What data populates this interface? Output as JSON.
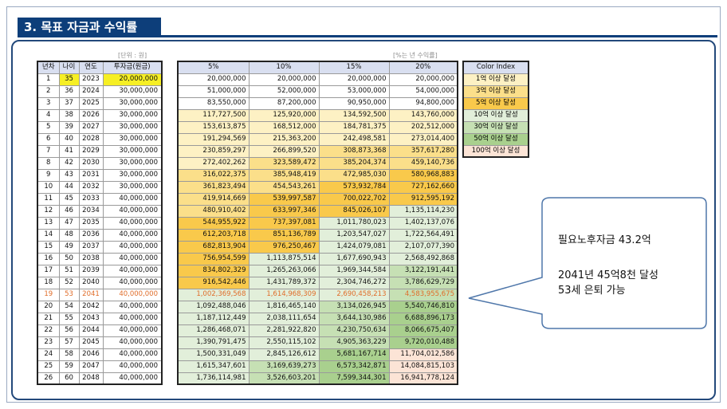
{
  "title": "3. 목표 자금과 수익률",
  "unit_label": "[단위 : 원]",
  "rate_label": "[%는 년 수익률]",
  "left_table": {
    "headers": [
      "년차",
      "나이",
      "연도",
      "투자금(원금)"
    ],
    "rows": [
      [
        "1",
        "35",
        "2023",
        "20,000,000"
      ],
      [
        "2",
        "36",
        "2024",
        "30,000,000"
      ],
      [
        "3",
        "37",
        "2025",
        "30,000,000"
      ],
      [
        "4",
        "38",
        "2026",
        "30,000,000"
      ],
      [
        "5",
        "39",
        "2027",
        "30,000,000"
      ],
      [
        "6",
        "40",
        "2028",
        "30,000,000"
      ],
      [
        "7",
        "41",
        "2029",
        "30,000,000"
      ],
      [
        "8",
        "42",
        "2030",
        "30,000,000"
      ],
      [
        "9",
        "43",
        "2031",
        "30,000,000"
      ],
      [
        "10",
        "44",
        "2032",
        "30,000,000"
      ],
      [
        "11",
        "45",
        "2033",
        "40,000,000"
      ],
      [
        "12",
        "46",
        "2034",
        "40,000,000"
      ],
      [
        "13",
        "47",
        "2035",
        "40,000,000"
      ],
      [
        "14",
        "48",
        "2036",
        "40,000,000"
      ],
      [
        "15",
        "49",
        "2037",
        "40,000,000"
      ],
      [
        "16",
        "50",
        "2038",
        "40,000,000"
      ],
      [
        "17",
        "51",
        "2039",
        "40,000,000"
      ],
      [
        "18",
        "52",
        "2040",
        "40,000,000"
      ],
      [
        "19",
        "53",
        "2041",
        "40,000,000"
      ],
      [
        "20",
        "54",
        "2042",
        "40,000,000"
      ],
      [
        "21",
        "55",
        "2043",
        "40,000,000"
      ],
      [
        "22",
        "56",
        "2044",
        "40,000,000"
      ],
      [
        "23",
        "57",
        "2045",
        "40,000,000"
      ],
      [
        "24",
        "58",
        "2046",
        "40,000,000"
      ],
      [
        "25",
        "59",
        "2047",
        "40,000,000"
      ],
      [
        "26",
        "60",
        "2048",
        "40,000,000"
      ]
    ]
  },
  "right_table": {
    "headers": [
      "5%",
      "10%",
      "15%",
      "20%"
    ],
    "rows": [
      [
        "20,000,000",
        "20,000,000",
        "20,000,000",
        "20,000,000"
      ],
      [
        "51,000,000",
        "52,000,000",
        "53,000,000",
        "54,000,000"
      ],
      [
        "83,550,000",
        "87,200,000",
        "90,950,000",
        "94,800,000"
      ],
      [
        "117,727,500",
        "125,920,000",
        "134,592,500",
        "143,760,000"
      ],
      [
        "153,613,875",
        "168,512,000",
        "184,781,375",
        "202,512,000"
      ],
      [
        "191,294,569",
        "215,363,200",
        "242,498,581",
        "273,014,400"
      ],
      [
        "230,859,297",
        "266,899,520",
        "308,873,368",
        "357,617,280"
      ],
      [
        "272,402,262",
        "323,589,472",
        "385,204,374",
        "459,140,736"
      ],
      [
        "316,022,375",
        "385,948,419",
        "472,985,030",
        "580,968,883"
      ],
      [
        "361,823,494",
        "454,543,261",
        "573,932,784",
        "727,162,660"
      ],
      [
        "419,914,669",
        "539,997,587",
        "700,022,702",
        "912,595,192"
      ],
      [
        "480,910,402",
        "633,997,346",
        "845,026,107",
        "1,135,114,230"
      ],
      [
        "544,955,922",
        "737,397,081",
        "1,011,780,023",
        "1,402,137,076"
      ],
      [
        "612,203,718",
        "851,136,789",
        "1,203,547,027",
        "1,722,564,491"
      ],
      [
        "682,813,904",
        "976,250,467",
        "1,424,079,081",
        "2,107,077,390"
      ],
      [
        "756,954,599",
        "1,113,875,514",
        "1,677,690,943",
        "2,568,492,868"
      ],
      [
        "834,802,329",
        "1,265,263,066",
        "1,969,344,584",
        "3,122,191,441"
      ],
      [
        "916,542,446",
        "1,431,789,372",
        "2,304,746,272",
        "3,786,629,729"
      ],
      [
        "1,002,369,568",
        "1,614,968,309",
        "2,690,458,213",
        "4,583,955,675"
      ],
      [
        "1,092,488,046",
        "1,816,465,140",
        "3,134,026,945",
        "5,540,746,810"
      ],
      [
        "1,187,112,449",
        "2,038,111,654",
        "3,644,130,986",
        "6,688,896,173"
      ],
      [
        "1,286,468,071",
        "2,281,922,820",
        "4,230,750,634",
        "8,066,675,407"
      ],
      [
        "1,390,791,475",
        "2,550,115,102",
        "4,905,363,229",
        "9,720,010,488"
      ],
      [
        "1,500,331,049",
        "2,845,126,612",
        "5,681,167,714",
        "11,704,012,586"
      ],
      [
        "1,615,347,601",
        "3,169,639,273",
        "6,573,342,871",
        "14,084,815,103"
      ],
      [
        "1,736,114,981",
        "3,526,603,201",
        "7,599,344,301",
        "16,941,778,124"
      ]
    ]
  },
  "legend": {
    "header": "Color Index",
    "items": [
      {
        "label": "1억 이상 달성",
        "color": "#fdf1c4"
      },
      {
        "label": "3억 이상 달성",
        "color": "#fbdf8a"
      },
      {
        "label": "5억 이상 달성",
        "color": "#f9c94b"
      },
      {
        "label": "10억 이상 달성",
        "color": "#e2efda"
      },
      {
        "label": "30억 이상 달성",
        "color": "#c6e0b4"
      },
      {
        "label": "50억 이상 달성",
        "color": "#a9d08e"
      },
      {
        "label": "100억 이상 달성",
        "color": "#fce4d6"
      }
    ]
  },
  "callout": {
    "line1": "필요노후자금 43.2억",
    "line2": "2041년 45억8천 달성",
    "line3": "53세 은퇴 가능"
  },
  "highlight_row": 18,
  "colors": {
    "title_bg": "#0d3e7a",
    "highlight_text": "#e06d2a",
    "first_principal": "#f6ef24"
  }
}
